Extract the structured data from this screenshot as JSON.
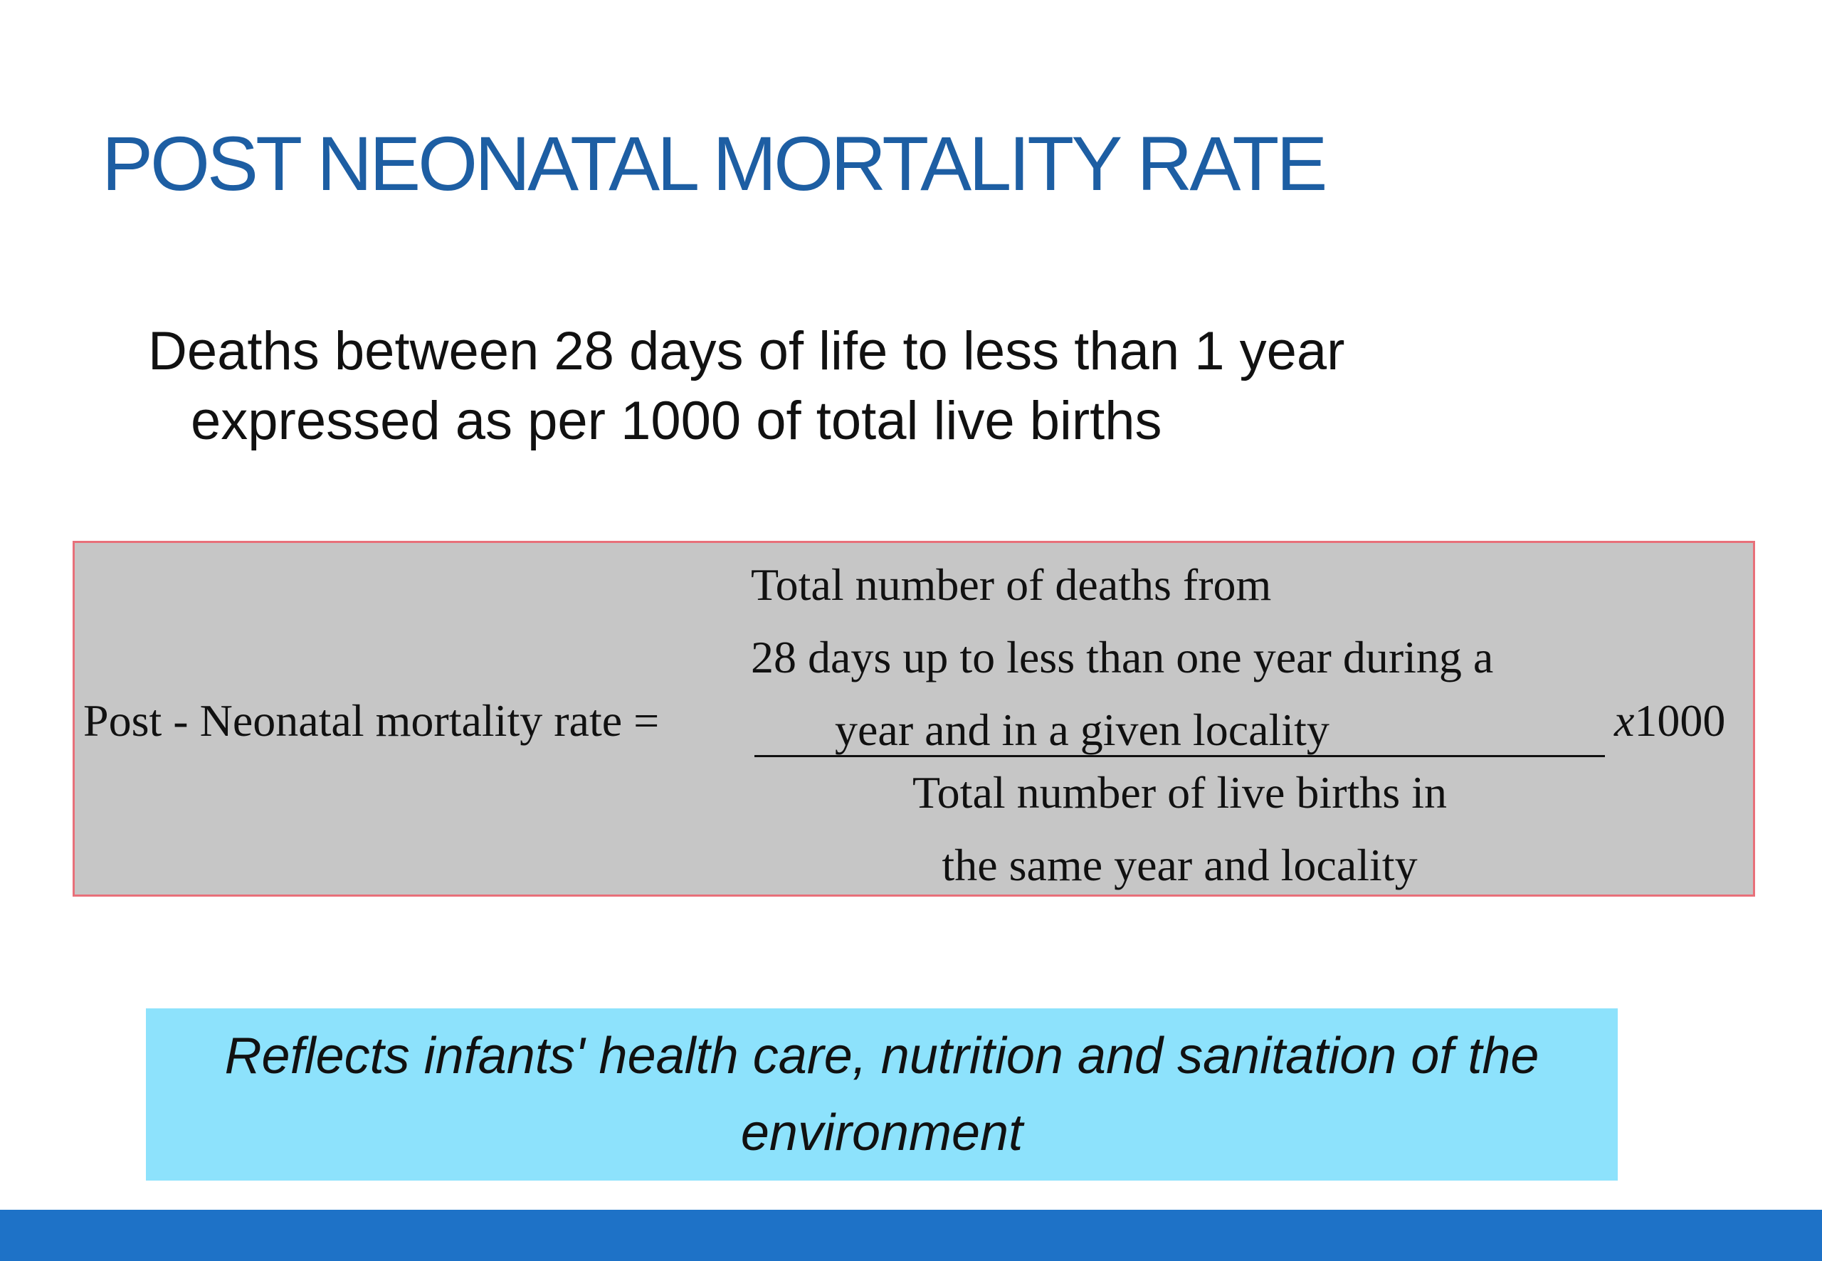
{
  "colors": {
    "title": "#1d5ea3",
    "formula_box_bg": "#c6c6c6",
    "formula_box_border": "#e8707a",
    "note_box_bg": "#8de2fc",
    "footer_bar": "#1e72c7"
  },
  "slide": {
    "title": "POST NEONATAL MORTALITY RATE",
    "definition": {
      "line1": "Deaths between 28 days of life to less than 1 year",
      "line2": "expressed as per 1000 of total live births"
    },
    "formula": {
      "lhs": "Post - Neonatal mortality rate =",
      "numerator": [
        "Total number of  deaths from",
        "28 days up to less than one year during a",
        "year and in a given locality"
      ],
      "denominator": [
        "Total number of  live births in",
        "the same year and locality"
      ],
      "multiplier_symbol": "x",
      "multiplier_value": "1000"
    },
    "note": {
      "line1": "Reflects infants' health care, nutrition and sanitation of the",
      "line2": "environment"
    }
  }
}
